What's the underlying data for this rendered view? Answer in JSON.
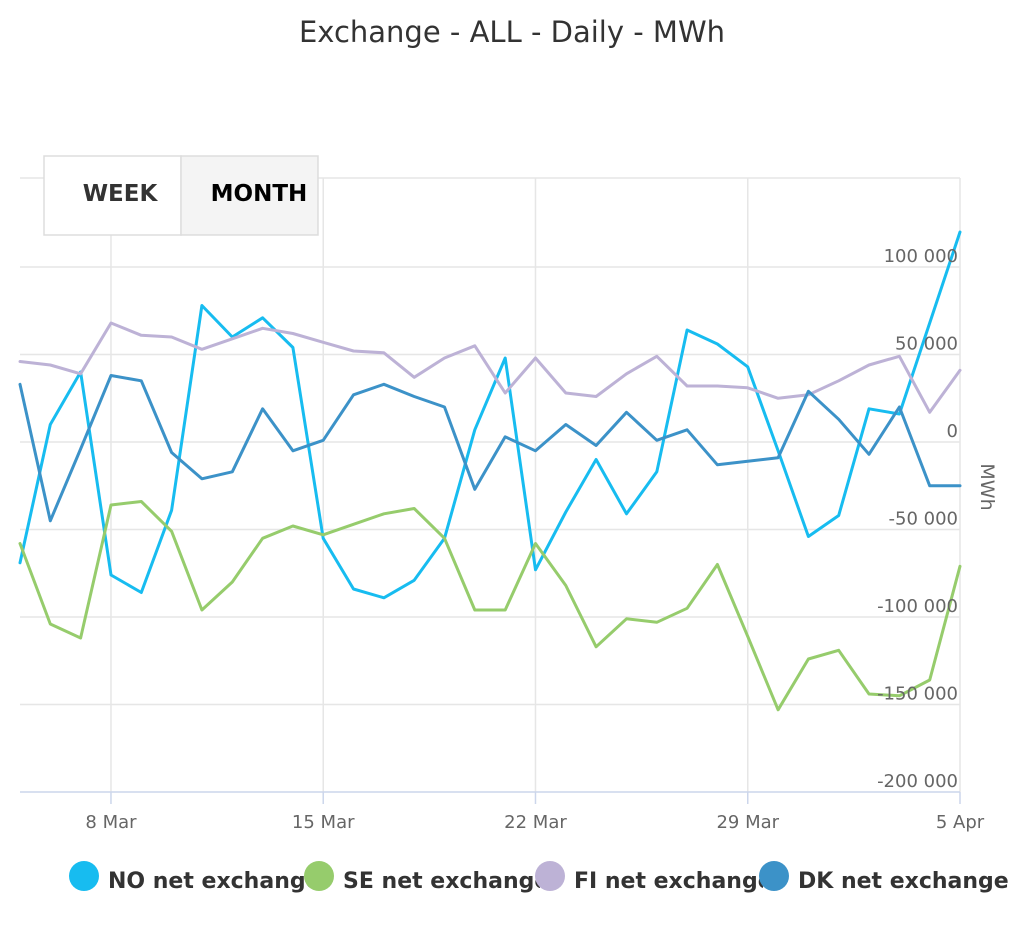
{
  "chart_data": {
    "type": "line",
    "title": "Exchange - ALL - Daily - MWh",
    "ylabel": "MWh",
    "xlabel": "",
    "ylim": [
      -200000,
      100000
    ],
    "yticks": [
      {
        "value": 100000,
        "label": "100 000"
      },
      {
        "value": 50000,
        "label": "50 000"
      },
      {
        "value": 0,
        "label": "0"
      },
      {
        "value": -50000,
        "label": "-50 000"
      },
      {
        "value": -100000,
        "label": "-100 000"
      },
      {
        "value": -150000,
        "label": "-150 000"
      },
      {
        "value": -200000,
        "label": "-200 000"
      }
    ],
    "xticks": [
      "8 Mar",
      "15 Mar",
      "22 Mar",
      "29 Mar",
      "5 Apr"
    ],
    "x": [
      "5 Mar",
      "6 Mar",
      "7 Mar",
      "8 Mar",
      "9 Mar",
      "10 Mar",
      "11 Mar",
      "12 Mar",
      "13 Mar",
      "14 Mar",
      "15 Mar",
      "16 Mar",
      "17 Mar",
      "18 Mar",
      "19 Mar",
      "20 Mar",
      "21 Mar",
      "22 Mar",
      "23 Mar",
      "24 Mar",
      "25 Mar",
      "26 Mar",
      "27 Mar",
      "28 Mar",
      "29 Mar",
      "30 Mar",
      "31 Mar",
      "1 Apr",
      "2 Apr",
      "3 Apr",
      "4 Apr",
      "5 Apr"
    ],
    "grid": true,
    "legend": "bottom",
    "series": [
      {
        "name": "NO net exchange",
        "color": "#17bcf0",
        "values": [
          -69000,
          10000,
          40000,
          -76000,
          -86000,
          -39000,
          78000,
          60000,
          71000,
          54000,
          -55000,
          -84000,
          -89000,
          -79000,
          -55000,
          7000,
          48000,
          -73000,
          -40000,
          -10000,
          -41000,
          -17000,
          64000,
          56000,
          43000,
          -5000,
          -54000,
          -42000,
          19000,
          16000,
          68000,
          120000
        ]
      },
      {
        "name": "SE net exchange",
        "color": "#96cc6c",
        "values": [
          -58000,
          -104000,
          -112000,
          -36000,
          -34000,
          -51000,
          -96000,
          -80000,
          -55000,
          -48000,
          -53000,
          -47000,
          -41000,
          -38000,
          -55000,
          -96000,
          -96000,
          -58000,
          -82000,
          -117000,
          -101000,
          -103000,
          -95000,
          -70000,
          -111000,
          -153000,
          -124000,
          -119000,
          -144000,
          -145000,
          -136000,
          -71000
        ]
      },
      {
        "name": "FI net exchange",
        "color": "#bdb2d6",
        "values": [
          46000,
          44000,
          39000,
          68000,
          61000,
          60000,
          53000,
          59000,
          65000,
          62000,
          57000,
          52000,
          51000,
          37000,
          48000,
          55000,
          28000,
          48000,
          28000,
          26000,
          39000,
          49000,
          32000,
          32000,
          31000,
          25000,
          27000,
          35000,
          44000,
          49000,
          17000,
          41000
        ]
      },
      {
        "name": "DK net exchange",
        "color": "#3c92c8",
        "values": [
          33000,
          -45000,
          -4000,
          38000,
          35000,
          -6000,
          -21000,
          -17000,
          19000,
          -5000,
          1000,
          27000,
          33000,
          26000,
          20000,
          -27000,
          3000,
          -5000,
          10000,
          -2000,
          17000,
          1000,
          7000,
          -13000,
          -11000,
          -9000,
          29000,
          13000,
          -7000,
          20000,
          -25000,
          -25000
        ]
      }
    ]
  },
  "range_selector": {
    "buttons": [
      {
        "label": "WEEK",
        "selected": false
      },
      {
        "label": "MONTH",
        "selected": true
      }
    ]
  }
}
